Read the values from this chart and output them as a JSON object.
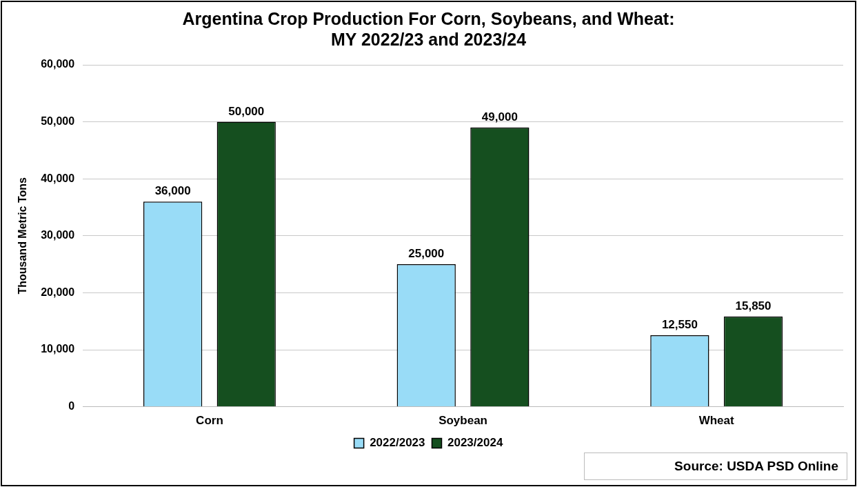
{
  "chart_data": {
    "type": "bar",
    "title": "Argentina Crop Production For Corn, Soybeans, and Wheat:\nMY 2022/23 and 2023/24",
    "ylabel": "Thousand Metric Tons",
    "categories": [
      "Corn",
      "Soybean",
      "Wheat"
    ],
    "series": [
      {
        "name": "2022/2023",
        "color": "#99dcf7",
        "values": [
          36000,
          25000,
          12550
        ],
        "value_labels": [
          "36,000",
          "25,000",
          "12,550"
        ]
      },
      {
        "name": "2023/2024",
        "color": "#154f1f",
        "values": [
          50000,
          49000,
          15850
        ],
        "value_labels": [
          "50,000",
          "49,000",
          "15,850"
        ]
      }
    ],
    "ylim": [
      0,
      60000
    ],
    "yticks": [
      0,
      {
        "value": 10000,
        "label": "10,000"
      },
      {
        "value": 20000,
        "label": "20,000"
      },
      {
        "value": 30000,
        "label": "30,000"
      },
      {
        "value": 40000,
        "label": "40,000"
      },
      {
        "value": 50000,
        "label": "50,000"
      },
      {
        "value": 60000,
        "label": "60,000"
      }
    ],
    "grid": "y",
    "legend": "bottom",
    "annotations": [
      "Source: USDA PSD Online"
    ]
  }
}
